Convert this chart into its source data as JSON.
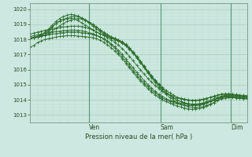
{
  "title": "",
  "xlabel": "Pression niveau de la mer( hPa )",
  "ylabel": "",
  "bg_color": "#cce8e0",
  "grid_color_major": "#aaccbb",
  "grid_color_minor": "#bbddd0",
  "line_color": "#2d6e2d",
  "marker_color": "#2d6e2d",
  "ylim": [
    1012.5,
    1020.4
  ],
  "yticks": [
    1013,
    1014,
    1015,
    1016,
    1017,
    1018,
    1019,
    1020
  ],
  "day_labels": [
    "Ven",
    "Sam",
    "Dim"
  ],
  "day_positions": [
    0.27,
    0.6,
    0.925
  ],
  "series": [
    [
      1017.5,
      1017.6,
      1017.8,
      1017.9,
      1018.0,
      1018.05,
      1018.1,
      1018.15,
      1018.2,
      1018.22,
      1018.25,
      1018.25,
      1018.25,
      1018.22,
      1018.2,
      1018.18,
      1018.15,
      1018.12,
      1018.05,
      1017.95,
      1017.82,
      1017.65,
      1017.45,
      1017.25,
      1017.0,
      1016.72,
      1016.42,
      1016.12,
      1015.82,
      1015.52,
      1015.25,
      1015.0,
      1014.75,
      1014.52,
      1014.32,
      1014.15,
      1014.0,
      1013.88,
      1013.78,
      1013.68,
      1013.6,
      1013.52,
      1013.45,
      1013.4,
      1013.38,
      1013.4,
      1013.42,
      1013.48,
      1013.58,
      1013.68,
      1013.82,
      1014.0,
      1014.12,
      1014.2,
      1014.22,
      1014.2,
      1014.18,
      1014.15,
      1014.15,
      1014.18
    ],
    [
      1018.05,
      1018.1,
      1018.15,
      1018.22,
      1018.28,
      1018.32,
      1018.35,
      1018.38,
      1018.42,
      1018.45,
      1018.48,
      1018.5,
      1018.5,
      1018.48,
      1018.45,
      1018.42,
      1018.38,
      1018.32,
      1018.25,
      1018.15,
      1018.02,
      1017.85,
      1017.65,
      1017.42,
      1017.15,
      1016.85,
      1016.55,
      1016.25,
      1015.95,
      1015.65,
      1015.38,
      1015.12,
      1014.88,
      1014.65,
      1014.45,
      1014.28,
      1014.12,
      1014.0,
      1013.9,
      1013.82,
      1013.75,
      1013.7,
      1013.65,
      1013.62,
      1013.62,
      1013.62,
      1013.65,
      1013.7,
      1013.78,
      1013.88,
      1013.98,
      1014.1,
      1014.18,
      1014.25,
      1014.28,
      1014.28,
      1014.25,
      1014.22,
      1014.22,
      1014.2
    ],
    [
      1018.2,
      1018.25,
      1018.3,
      1018.35,
      1018.4,
      1018.45,
      1018.5,
      1018.52,
      1018.55,
      1018.58,
      1018.6,
      1018.62,
      1018.62,
      1018.6,
      1018.57,
      1018.52,
      1018.45,
      1018.38,
      1018.28,
      1018.18,
      1018.05,
      1017.9,
      1017.72,
      1017.52,
      1017.28,
      1017.02,
      1016.72,
      1016.42,
      1016.12,
      1015.82,
      1015.55,
      1015.28,
      1015.02,
      1014.78,
      1014.56,
      1014.38,
      1014.22,
      1014.08,
      1013.97,
      1013.88,
      1013.82,
      1013.78,
      1013.75,
      1013.72,
      1013.72,
      1013.72,
      1013.75,
      1013.8,
      1013.88,
      1013.98,
      1014.08,
      1014.18,
      1014.25,
      1014.3,
      1014.32,
      1014.32,
      1014.3,
      1014.28,
      1014.25,
      1014.25
    ],
    [
      1018.35,
      1018.42,
      1018.48,
      1018.55,
      1018.6,
      1018.65,
      1018.7,
      1018.75,
      1018.78,
      1018.82,
      1018.85,
      1018.87,
      1018.88,
      1018.87,
      1018.85,
      1018.8,
      1018.72,
      1018.62,
      1018.5,
      1018.38,
      1018.25,
      1018.12,
      1017.98,
      1017.82,
      1017.62,
      1017.4,
      1017.15,
      1016.88,
      1016.58,
      1016.28,
      1015.98,
      1015.7,
      1015.42,
      1015.18,
      1014.95,
      1014.75,
      1014.58,
      1014.42,
      1014.3,
      1014.2,
      1014.12,
      1014.06,
      1014.02,
      1013.98,
      1013.97,
      1013.97,
      1013.98,
      1014.02,
      1014.08,
      1014.15,
      1014.22,
      1014.3,
      1014.35,
      1014.38,
      1014.4,
      1014.38,
      1014.35,
      1014.32,
      1014.3,
      1014.28
    ],
    [
      1018.08,
      1018.12,
      1018.18,
      1018.25,
      1018.3,
      1018.55,
      1018.82,
      1019.05,
      1019.22,
      1019.32,
      1019.38,
      1019.4,
      1019.35,
      1019.25,
      1019.1,
      1018.95,
      1018.8,
      1018.65,
      1018.5,
      1018.38,
      1018.28,
      1018.2,
      1018.12,
      1018.05,
      1017.95,
      1017.82,
      1017.65,
      1017.42,
      1017.15,
      1016.85,
      1016.55,
      1016.22,
      1015.9,
      1015.6,
      1015.32,
      1015.05,
      1014.82,
      1014.62,
      1014.45,
      1014.3,
      1014.18,
      1014.1,
      1014.05,
      1014.0,
      1013.98,
      1013.98,
      1014.0,
      1014.05,
      1014.1,
      1014.18,
      1014.25,
      1014.32,
      1014.38,
      1014.4,
      1014.38,
      1014.35,
      1014.3,
      1014.25,
      1014.22,
      1014.2
    ],
    [
      1018.08,
      1018.1,
      1018.15,
      1018.2,
      1018.28,
      1018.38,
      1018.55,
      1018.72,
      1018.9,
      1019.05,
      1019.18,
      1019.28,
      1019.35,
      1019.38,
      1019.35,
      1019.28,
      1019.15,
      1019.0,
      1018.82,
      1018.65,
      1018.48,
      1018.32,
      1018.18,
      1018.05,
      1017.92,
      1017.78,
      1017.6,
      1017.38,
      1017.12,
      1016.82,
      1016.5,
      1016.18,
      1015.85,
      1015.55,
      1015.25,
      1014.98,
      1014.72,
      1014.5,
      1014.3,
      1014.12,
      1013.98,
      1013.88,
      1013.8,
      1013.75,
      1013.72,
      1013.72,
      1013.72,
      1013.75,
      1013.82,
      1013.9,
      1014.0,
      1014.1,
      1014.18,
      1014.22,
      1014.22,
      1014.2,
      1014.18,
      1014.15,
      1014.12,
      1014.12
    ],
    [
      1018.08,
      1018.12,
      1018.18,
      1018.28,
      1018.42,
      1018.62,
      1018.85,
      1019.05,
      1019.2,
      1019.32,
      1019.42,
      1019.5,
      1019.52,
      1019.5,
      1019.42,
      1019.3,
      1019.15,
      1018.98,
      1018.8,
      1018.62,
      1018.45,
      1018.3,
      1018.18,
      1018.08,
      1017.98,
      1017.85,
      1017.68,
      1017.45,
      1017.18,
      1016.88,
      1016.55,
      1016.22,
      1015.88,
      1015.56,
      1015.26,
      1014.98,
      1014.72,
      1014.5,
      1014.3,
      1014.12,
      1013.98,
      1013.88,
      1013.8,
      1013.75,
      1013.72,
      1013.72,
      1013.72,
      1013.75,
      1013.82,
      1013.9,
      1014.0,
      1014.1,
      1014.18,
      1014.22,
      1014.22,
      1014.2,
      1014.15,
      1014.12,
      1014.1,
      1014.1
    ],
    [
      1018.1,
      1018.15,
      1018.22,
      1018.32,
      1018.48,
      1018.7,
      1018.95,
      1019.18,
      1019.38,
      1019.52,
      1019.6,
      1019.65,
      1019.62,
      1019.55,
      1019.42,
      1019.25,
      1019.08,
      1018.88,
      1018.7,
      1018.52,
      1018.35,
      1018.2,
      1018.08,
      1017.98,
      1017.88,
      1017.75,
      1017.58,
      1017.35,
      1017.08,
      1016.78,
      1016.45,
      1016.12,
      1015.78,
      1015.45,
      1015.15,
      1014.85,
      1014.58,
      1014.35,
      1014.15,
      1013.98,
      1013.82,
      1013.7,
      1013.62,
      1013.55,
      1013.52,
      1013.5,
      1013.52,
      1013.55,
      1013.62,
      1013.72,
      1013.82,
      1013.95,
      1014.05,
      1014.12,
      1014.15,
      1014.15,
      1014.12,
      1014.1,
      1014.08,
      1014.08
    ]
  ]
}
